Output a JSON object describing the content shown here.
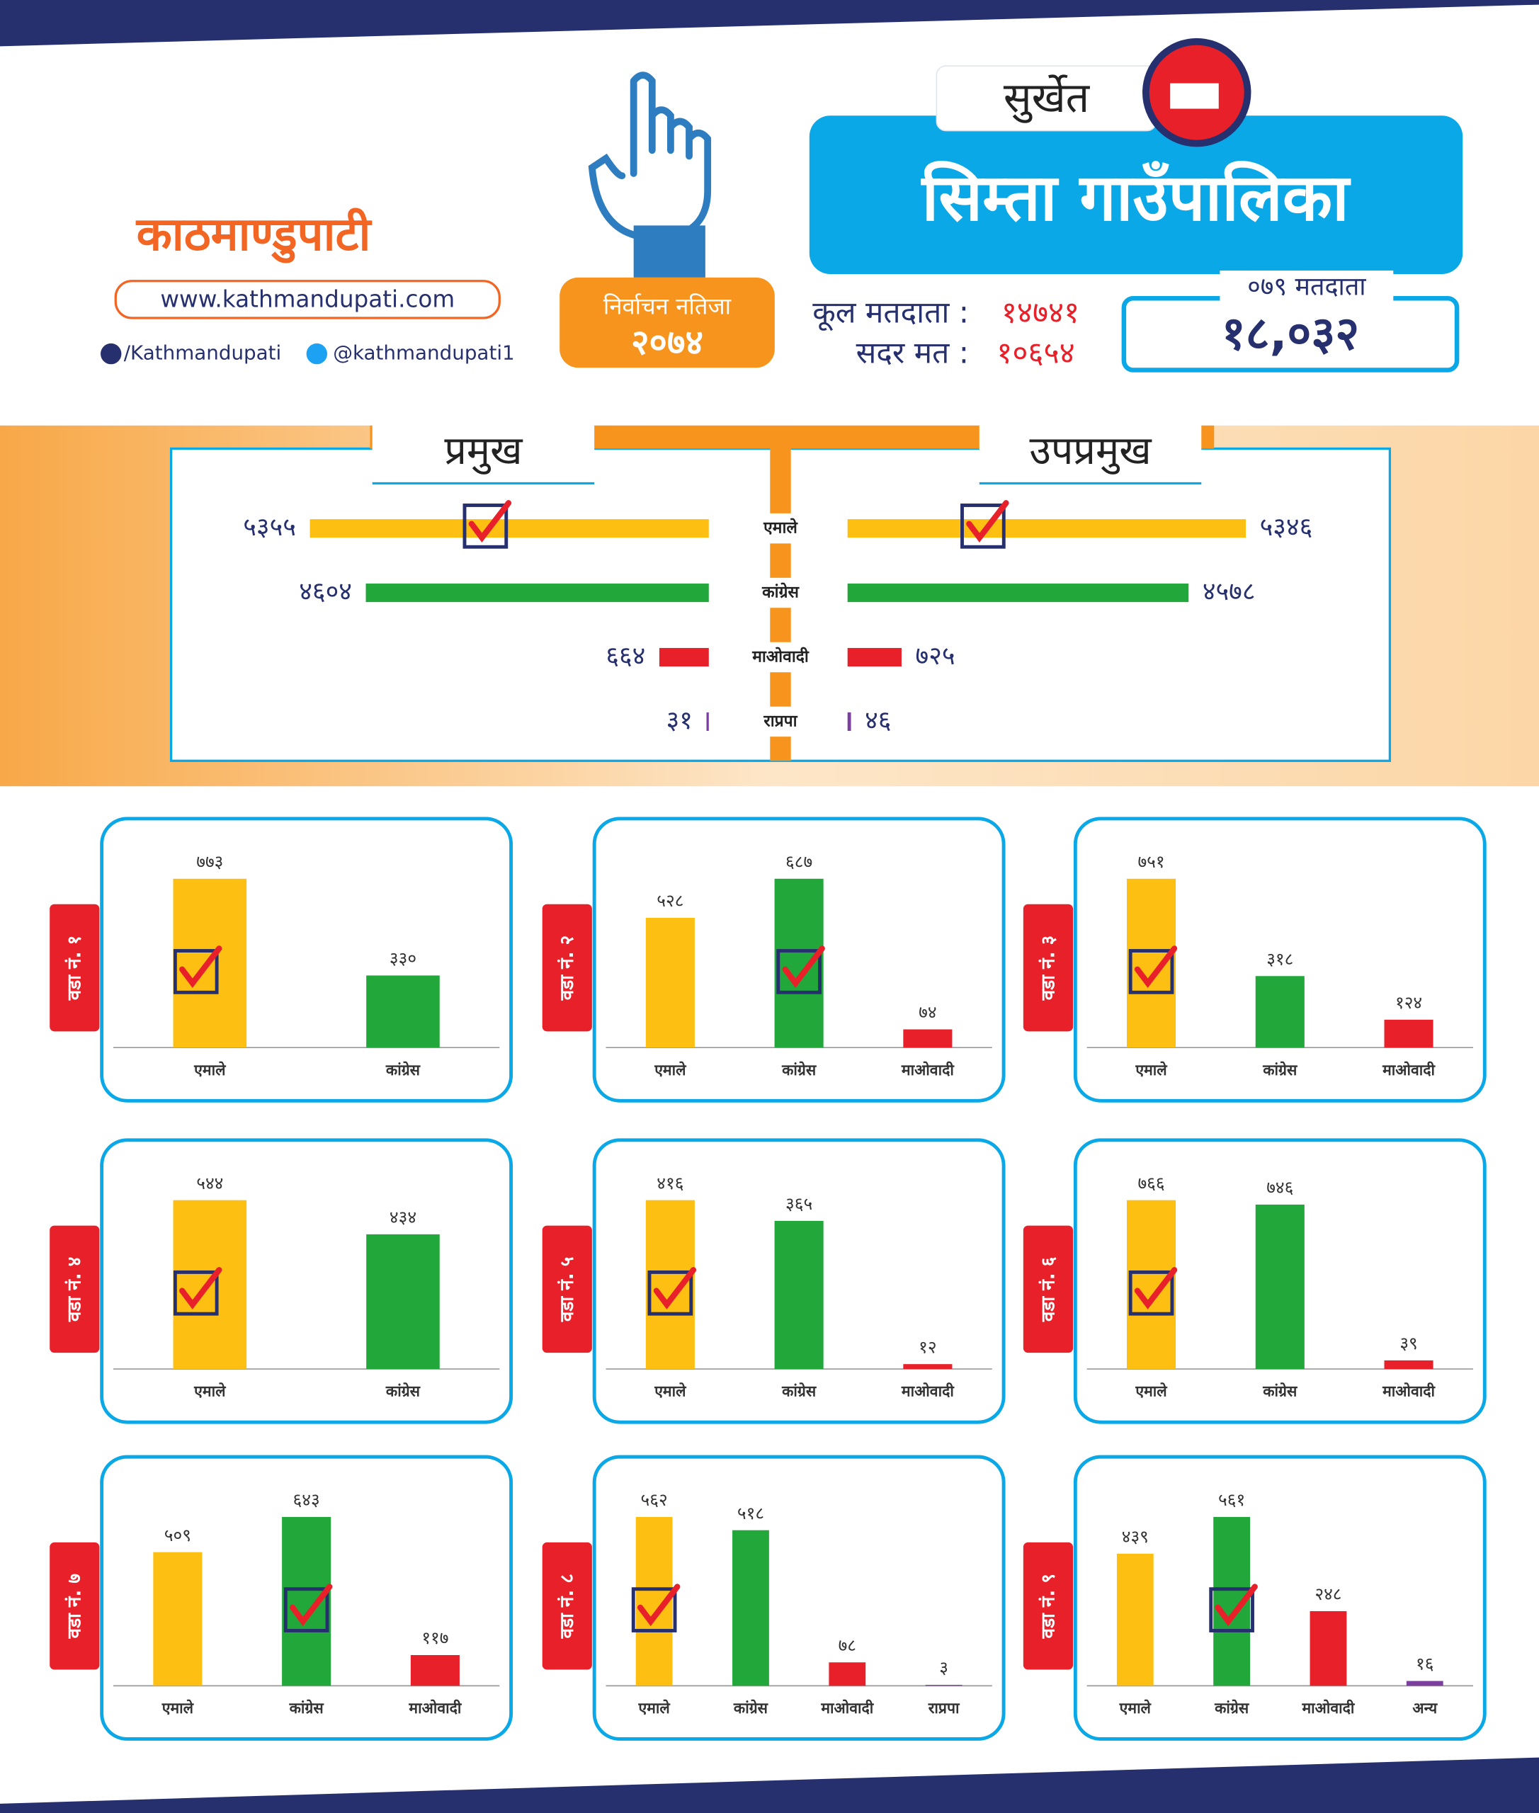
{
  "header": {
    "logo": "काठमाण्डुपाटी",
    "website": "www.kathmandupati.com",
    "facebook": "/Kathmandupati",
    "twitter": "@kathmandupati1",
    "badge_title": "निर्वाचन नतिजा",
    "badge_year": "२०७४",
    "district": "सुर्खेत",
    "municipality": "सिम्ता गाउँपालिका",
    "total_voters_label": "कूल मतदाता :",
    "total_voters": "१४७४१",
    "valid_votes_label": "सदर मत :",
    "valid_votes": "१०६५४",
    "voters_079_label": "०७९ मतदाता",
    "voters_079": "१८,०३२"
  },
  "chart_data": [
    {
      "type": "bar",
      "orientation": "horizontal",
      "categories": [
        "एमाले",
        "कांग्रेस",
        "माओवादी",
        "राप्रपा"
      ],
      "colors": [
        "#fdbf12",
        "#22a83a",
        "#e8202a",
        "#7b3f9e"
      ],
      "series": [
        {
          "name": "प्रमुख",
          "values": [
            5355,
            4604,
            664,
            31
          ],
          "value_labels": [
            "५३५५",
            "४६०४",
            "६६४",
            "३१"
          ],
          "checked": 0
        },
        {
          "name": "उपप्रमुख",
          "values": [
            5346,
            4578,
            725,
            46
          ],
          "value_labels": [
            "५३४६",
            "४५७८",
            "७२५",
            "४६"
          ],
          "checked": 0
        }
      ]
    },
    {
      "type": "bar",
      "title": "वडा नं. १",
      "categories": [
        "एमाले",
        "कांग्रेस"
      ],
      "values": [
        773,
        330
      ],
      "value_labels": [
        "७७३",
        "३३०"
      ],
      "colors": [
        "#fdbf12",
        "#22a83a"
      ],
      "checked": 0
    },
    {
      "type": "bar",
      "title": "वडा नं. २",
      "categories": [
        "एमाले",
        "कांग्रेस",
        "माओवादी"
      ],
      "values": [
        528,
        687,
        74
      ],
      "value_labels": [
        "५२८",
        "६८७",
        "७४"
      ],
      "colors": [
        "#fdbf12",
        "#22a83a",
        "#e8202a"
      ],
      "checked": 1
    },
    {
      "type": "bar",
      "title": "वडा नं. ३",
      "categories": [
        "एमाले",
        "कांग्रेस",
        "माओवादी"
      ],
      "values": [
        751,
        318,
        124
      ],
      "value_labels": [
        "७५१",
        "३१८",
        "१२४"
      ],
      "colors": [
        "#fdbf12",
        "#22a83a",
        "#e8202a"
      ],
      "checked": 0
    },
    {
      "type": "bar",
      "title": "वडा नं. ४",
      "categories": [
        "एमाले",
        "कांग्रेस"
      ],
      "values": [
        544,
        434
      ],
      "value_labels": [
        "५४४",
        "४३४"
      ],
      "colors": [
        "#fdbf12",
        "#22a83a"
      ],
      "checked": 0
    },
    {
      "type": "bar",
      "title": "वडा नं. ५",
      "categories": [
        "एमाले",
        "कांग्रेस",
        "माओवादी"
      ],
      "values": [
        416,
        365,
        12
      ],
      "value_labels": [
        "४१६",
        "३६५",
        "१२"
      ],
      "colors": [
        "#fdbf12",
        "#22a83a",
        "#e8202a"
      ],
      "checked": 0
    },
    {
      "type": "bar",
      "title": "वडा नं. ६",
      "categories": [
        "एमाले",
        "कांग्रेस",
        "माओवादी"
      ],
      "values": [
        766,
        746,
        39
      ],
      "value_labels": [
        "७६६",
        "७४६",
        "३९"
      ],
      "colors": [
        "#fdbf12",
        "#22a83a",
        "#e8202a"
      ],
      "checked": 0
    },
    {
      "type": "bar",
      "title": "वडा नं. ७",
      "categories": [
        "एमाले",
        "कांग्रेस",
        "माओवादी"
      ],
      "values": [
        509,
        643,
        117
      ],
      "value_labels": [
        "५०९",
        "६४३",
        "११७"
      ],
      "colors": [
        "#fdbf12",
        "#22a83a",
        "#e8202a"
      ],
      "checked": 1
    },
    {
      "type": "bar",
      "title": "वडा नं. ८",
      "categories": [
        "एमाले",
        "कांग्रेस",
        "माओवादी",
        "राप्रपा"
      ],
      "values": [
        562,
        518,
        78,
        3
      ],
      "value_labels": [
        "५६२",
        "५१८",
        "७८",
        "३"
      ],
      "colors": [
        "#fdbf12",
        "#22a83a",
        "#e8202a",
        "#7b3f9e"
      ],
      "checked": 0
    },
    {
      "type": "bar",
      "title": "वडा नं. ९",
      "categories": [
        "एमाले",
        "कांग्रेस",
        "माओवादी",
        "अन्य"
      ],
      "values": [
        439,
        561,
        248,
        16
      ],
      "value_labels": [
        "४३९",
        "५६१",
        "२४८",
        "१६"
      ],
      "colors": [
        "#fdbf12",
        "#22a83a",
        "#e8202a",
        "#7b3f9e"
      ],
      "checked": 1
    }
  ]
}
